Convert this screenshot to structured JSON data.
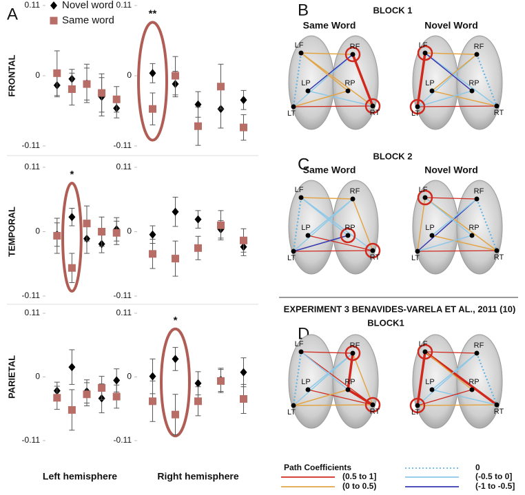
{
  "panel_labels": [
    "A",
    "B",
    "C",
    "D"
  ],
  "chart_data": [
    {
      "type": "errorbar",
      "ylabel": "FRONTAL",
      "categories": [
        null,
        null,
        null,
        null,
        null
      ],
      "ylim": [
        -0.11,
        0.11
      ],
      "yticks": [
        -0.11,
        0,
        0.11
      ],
      "series": [
        {
          "name": "Novel word",
          "color": "#000000",
          "values": [
            -0.015,
            -0.005,
            -0.012,
            -0.033,
            -0.051
          ],
          "errors": [
            0.018,
            0.015,
            0.03,
            0.03,
            0.015
          ]
        },
        {
          "name": "Same word",
          "color": "#b86e66",
          "values": [
            0.004,
            -0.021,
            -0.013,
            -0.027,
            -0.037
          ],
          "errors": [
            0.035,
            0.025,
            0.025,
            0.03,
            0.02
          ]
        }
      ]
    },
    {
      "type": "errorbar",
      "annotation": "**",
      "categories": [
        null,
        null,
        null,
        null,
        null
      ],
      "ylim": [
        -0.11,
        0.11
      ],
      "yticks": [
        -0.11,
        0,
        0.11
      ],
      "series": [
        {
          "values": [
            0.004,
            -0.013,
            -0.045,
            -0.052,
            -0.038
          ],
          "errors": [
            0.015,
            0.02,
            0.02,
            0.03,
            0.015
          ]
        },
        {
          "values": [
            -0.052,
            0,
            -0.079,
            -0.017,
            -0.081
          ],
          "errors": [
            0.025,
            0.03,
            0.03,
            0.035,
            0.02
          ]
        }
      ]
    },
    {
      "type": "errorbar",
      "ylabel": "TEMPORAL",
      "annotation": "*",
      "categories": [
        null,
        null,
        null,
        null,
        null
      ],
      "ylim": [
        -0.11,
        0.11
      ],
      "yticks": [
        -0.11,
        0,
        0.11
      ],
      "series": [
        {
          "values": [
            -0.005,
            0.025,
            -0.012,
            -0.021,
            0.004
          ],
          "errors": [
            0.02,
            0.015,
            0.025,
            0.015,
            0.02
          ]
        },
        {
          "values": [
            -0.007,
            -0.062,
            0.014,
            0,
            -0.002
          ],
          "errors": [
            0.03,
            0.025,
            0.03,
            0.025,
            0.02
          ]
        }
      ]
    },
    {
      "type": "errorbar",
      "categories": [
        null,
        null,
        null,
        null,
        null
      ],
      "ylim": [
        -0.11,
        0.11
      ],
      "yticks": [
        -0.11,
        0,
        0.11
      ],
      "series": [
        {
          "values": [
            -0.005,
            0.034,
            0.021,
            0.004,
            -0.026
          ],
          "errors": [
            0.015,
            0.025,
            0.015,
            0.015,
            0.015
          ]
        },
        {
          "values": [
            -0.038,
            -0.046,
            -0.028,
            0.011,
            -0.015
          ],
          "errors": [
            0.025,
            0.03,
            0.02,
            0.025,
            0.02
          ]
        }
      ]
    },
    {
      "type": "errorbar",
      "ylabel": "PARIETAL",
      "xlabel": "Left hemisphere",
      "categories": [
        null,
        null,
        null,
        null,
        null
      ],
      "ylim": [
        -0.11,
        0.11
      ],
      "yticks": [
        -0.11,
        0,
        0.11
      ],
      "series": [
        {
          "values": [
            -0.024,
            0.017,
            -0.025,
            -0.037,
            -0.006
          ],
          "errors": [
            0.015,
            0.03,
            0.02,
            0.025,
            0.02
          ]
        },
        {
          "values": [
            -0.036,
            -0.057,
            -0.03,
            -0.019,
            -0.034
          ],
          "errors": [
            0.02,
            0.035,
            0.02,
            0.02,
            0.02
          ]
        }
      ]
    },
    {
      "type": "errorbar",
      "xlabel": "Right hemisphere",
      "annotation": "*",
      "categories": [
        null,
        null,
        null,
        null,
        null
      ],
      "ylim": [
        -0.11,
        0.11
      ],
      "yticks": [
        -0.11,
        0,
        0.11
      ],
      "series": [
        {
          "values": [
            0.001,
            0.031,
            -0.011,
            -0.005,
            0.008
          ],
          "errors": [
            0.03,
            0.02,
            0.02,
            0.02,
            0.025
          ]
        },
        {
          "values": [
            -0.042,
            -0.065,
            -0.042,
            -0.007,
            -0.038
          ],
          "errors": [
            0.035,
            0.035,
            0.025,
            0.02,
            0.025
          ]
        }
      ]
    }
  ],
  "diagrams": {
    "node_labels": [
      "LF",
      "RF",
      "LP",
      "RP",
      "LT",
      "RT"
    ],
    "blocks": [
      {
        "title": "BLOCK 1",
        "brain_titles": [
          "Same Word",
          "Novel Word"
        ]
      },
      {
        "title": "BLOCK 2",
        "brain_titles": [
          "Same Word",
          "Novel Word"
        ]
      },
      {
        "heading": "EXPERIMENT 3 BENAVIDES-VARELA ET AL., 2011 (10)",
        "title": "BLOCK1"
      }
    ],
    "legend": {
      "title": "Path Coefficients",
      "items": [
        "(0.5 to 1]",
        "(0 to 0.5)",
        "0",
        "(-0.5 to 0]",
        "(-1 to -0.5]"
      ]
    }
  }
}
